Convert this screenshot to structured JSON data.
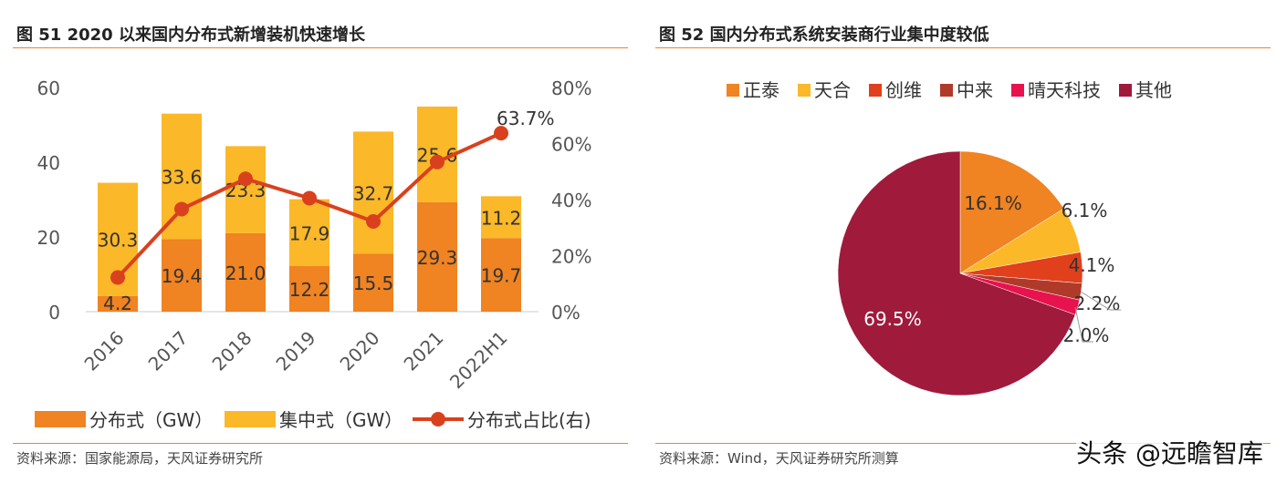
{
  "left": {
    "title": "图 51 2020 以来国内分布式新增装机快速增长",
    "source": "资料来源：国家能源局，天风证券研究所"
  },
  "right": {
    "title": "图 52 国内分布式系统安装商行业集中度较低",
    "source": "资料来源：Wind，天风证券研究所测算"
  },
  "watermark": "头条 @远瞻智库",
  "chart_data": [
    {
      "type": "bar",
      "stacked": true,
      "categories": [
        "2016",
        "2017",
        "2018",
        "2019",
        "2020",
        "2021",
        "2022H1"
      ],
      "series": [
        {
          "name": "分布式（GW）",
          "values": [
            4.2,
            19.4,
            21.0,
            12.2,
            15.5,
            29.3,
            19.7
          ],
          "color": "#F08322"
        },
        {
          "name": "集中式（GW）",
          "values": [
            30.3,
            33.6,
            23.3,
            17.9,
            32.7,
            25.6,
            11.2
          ],
          "color": "#FBB829"
        },
        {
          "name": "分布式占比(右)",
          "type": "line",
          "axis": "right",
          "values": [
            12.2,
            36.6,
            47.4,
            40.5,
            32.2,
            53.4,
            63.7
          ],
          "color": "#D9411E",
          "label": "63.7%"
        }
      ],
      "ylim": [
        0,
        60
      ],
      "yticks": [
        "0",
        "20",
        "40",
        "60"
      ],
      "y2lim": [
        0,
        80
      ],
      "y2ticks": [
        "0%",
        "20%",
        "40%",
        "60%",
        "80%"
      ],
      "grid": false,
      "legend": "bottom"
    },
    {
      "type": "pie",
      "labels": [
        "正泰",
        "天合",
        "创维",
        "中来",
        "晴天科技",
        "其他"
      ],
      "values": [
        16.1,
        6.1,
        4.1,
        2.2,
        2.0,
        69.5
      ],
      "value_labels": [
        "16.1%",
        "6.1%",
        "4.1%",
        "2.2%",
        "2.0%",
        "69.5%"
      ],
      "colors": [
        "#F08322",
        "#FBB829",
        "#E0401C",
        "#B03A2A",
        "#E8124E",
        "#A01A3C"
      ],
      "legend": "top"
    }
  ]
}
